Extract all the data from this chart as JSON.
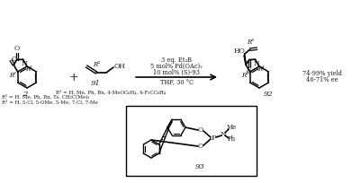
{
  "bg_color": "#ffffff",
  "fig_width": 3.91,
  "fig_height": 2.04,
  "dpi": 100,
  "conditions_lines": [
    "3 eq. Et₃B",
    "5 mol% Pd(OAc)₂",
    "10 mol% (S)-93"
  ],
  "conditions_line2": "THF, 30 °C",
  "r3_line": "R³ = H, Me, Ph, Bn, 4-MeOC₆H₄, 4-F₃CC₆H₄",
  "r1_line": "R¹ = H, Me, Ph, Bn, Ts, CH₂C(Me)₃",
  "r2_line": "R² = H, 5-Cl, 5-OMe, 5-Me, 7-Cl, 7-Me",
  "yield_line1": "74-99% yield",
  "yield_line2": "46-71% ee",
  "compound2": "2",
  "compound91": "91",
  "compound92": "92",
  "compound93": "93",
  "line_color": "#000000",
  "text_color": "#1a1a1a",
  "box_color": "#000000"
}
